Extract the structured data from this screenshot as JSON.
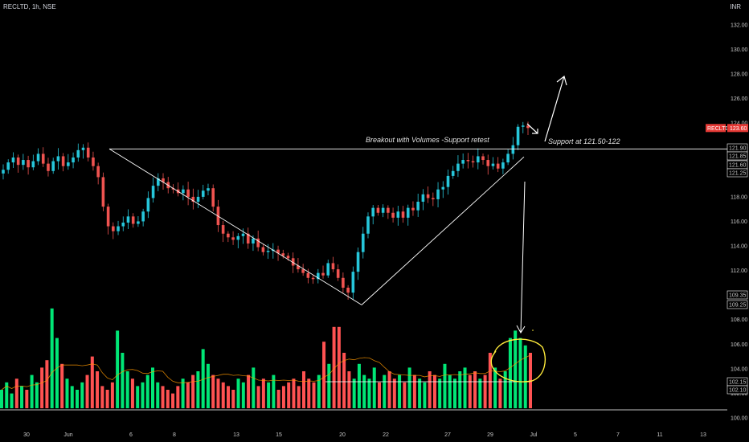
{
  "header": {
    "symbol_line": "RECLTD, 1h, NSE",
    "currency": "INR"
  },
  "colors": {
    "background": "#000000",
    "up": "#26c6da",
    "down": "#ef5350",
    "volume_up": "#00e676",
    "volume_down": "#ff5252",
    "trendline": "#ffffff",
    "highlight": "#ffeb3b",
    "badge": "#e53935",
    "volume_ma": "#ff9800"
  },
  "chart_data": {
    "type": "candlestick",
    "y_axis": {
      "range": [
        100,
        133.5
      ],
      "ticks": [
        "132.00",
        "130.00",
        "128.00",
        "126.00",
        "124.00",
        "122.00",
        "120.00",
        "118.00",
        "116.00",
        "114.00",
        "112.00",
        "110.00",
        "108.00",
        "106.00",
        "104.00",
        "102.00",
        "100.00"
      ],
      "level_labels": [
        "121.90",
        "121.85",
        "121.60",
        "121.25",
        "109.35",
        "109.25",
        "102.15",
        "102.10"
      ]
    },
    "x_axis": {
      "ticks": [
        "30",
        "Jun",
        "6",
        "8",
        "13",
        "15",
        "20",
        "22",
        "27",
        "29",
        "Jul",
        "5",
        "7",
        "11",
        "13"
      ]
    },
    "last_price": {
      "symbol": "RECLTD",
      "value": "123.60"
    },
    "price_path": [
      120.2,
      120.8,
      121.2,
      120.6,
      121.0,
      120.4,
      120.9,
      121.5,
      120.7,
      120.1,
      120.9,
      121.3,
      120.5,
      120.8,
      121.2,
      121.8,
      122.0,
      121.2,
      120.5,
      119.6,
      117.2,
      115.6,
      115.2,
      115.6,
      115.9,
      116.4,
      115.8,
      116.0,
      116.8,
      117.9,
      118.9,
      119.5,
      119.2,
      118.7,
      118.6,
      118.3,
      118.6,
      118.0,
      117.6,
      118.0,
      118.5,
      118.7,
      117.2,
      115.7,
      115.0,
      114.7,
      114.5,
      114.8,
      115.0,
      114.2,
      114.6,
      113.9,
      113.5,
      113.6,
      113.7,
      113.4,
      113.2,
      113.0,
      112.4,
      112.1,
      111.8,
      111.4,
      111.3,
      111.8,
      111.6,
      112.6,
      112.1,
      111.4,
      110.6,
      110.2,
      111.9,
      113.5,
      115.0,
      116.4,
      117.1,
      116.7,
      117.1,
      116.7,
      116.3,
      116.8,
      116.3,
      117.1,
      116.9,
      117.6,
      118.2,
      117.9,
      117.8,
      118.6,
      118.8,
      119.7,
      120.1,
      120.7,
      121.0,
      120.9,
      120.8,
      121.3,
      121.0,
      120.5,
      120.7,
      120.3,
      120.8,
      121.5,
      122.2,
      123.7,
      123.8,
      123.6
    ],
    "volumes": [
      5,
      7,
      4,
      8,
      6,
      5,
      9,
      7,
      11,
      13,
      27,
      19,
      12,
      8,
      6,
      5,
      7,
      9,
      14,
      10,
      6,
      5,
      7,
      21,
      15,
      10,
      8,
      6,
      7,
      9,
      11,
      7,
      6,
      5,
      4,
      6,
      8,
      7,
      9,
      10,
      16,
      12,
      9,
      8,
      7,
      6,
      5,
      8,
      7,
      9,
      11,
      6,
      8,
      7,
      9,
      5,
      6,
      7,
      8,
      6,
      10,
      8,
      7,
      9,
      18,
      12,
      22,
      22,
      15,
      10,
      8,
      12,
      9,
      8,
      11,
      7,
      9,
      10,
      8,
      9,
      7,
      11,
      9,
      8,
      7,
      10,
      9,
      8,
      12,
      9,
      8,
      10,
      11,
      9,
      10,
      8,
      9,
      15,
      11,
      8,
      10,
      19,
      21,
      19,
      17,
      15
    ],
    "volume_range": [
      0,
      30
    ],
    "annotations": [
      {
        "text": "Breakout with Volumes -Support retest"
      },
      {
        "text": "Support at 121.50-122"
      }
    ]
  }
}
